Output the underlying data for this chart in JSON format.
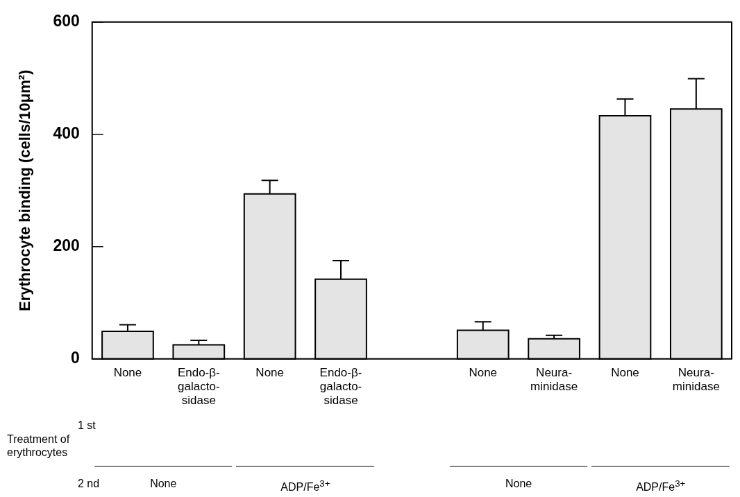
{
  "chart_data": {
    "type": "bar",
    "ylabel": "Erythrocyte binding (cells/10μm²)",
    "categories": [
      "None",
      "Endo-β-\ngalacto-\nsidase",
      "None",
      "Endo-β-\ngalacto-\nsidase",
      null,
      "None",
      "Neura-\nminidase",
      "None",
      "Neura-\nminidase"
    ],
    "values": [
      49,
      25,
      294,
      142,
      null,
      51,
      36,
      433,
      445
    ],
    "errors": [
      12,
      8,
      24,
      33,
      null,
      15,
      6,
      30,
      54
    ],
    "color": "#e4e4e4",
    "ylim": [
      0,
      600
    ],
    "yticks": [
      0,
      200,
      400,
      600
    ],
    "grid": false,
    "legend": false,
    "annotations": [
      "Treatment of\nerythrocytes",
      "1 st",
      "2 nd",
      "None",
      "ADP/Fe$^{3+}$",
      "None",
      "ADP/Fe$^{3+}$"
    ]
  }
}
